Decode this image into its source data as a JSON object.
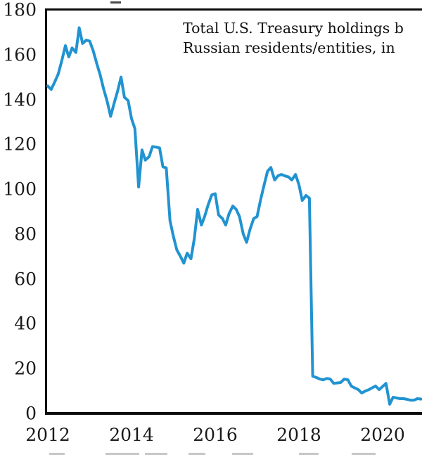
{
  "chart_data": {
    "type": "line",
    "title_lines": [
      "Total U.S. Treasury holdings b",
      "Russian residents/entities, in"
    ],
    "xlabel": "",
    "ylabel": "",
    "xlim": [
      2012.0,
      2020.94
    ],
    "ylim": [
      0,
      180
    ],
    "x_tick_years": [
      2012,
      2014,
      2016,
      2018,
      2020
    ],
    "y_tick_values": [
      180,
      160,
      140,
      120,
      100,
      80,
      60,
      40,
      20,
      0
    ],
    "grid": false,
    "legend_position": "none",
    "line_color": "#2193d1",
    "axis_color": "#0b0b0b",
    "series": [
      {
        "name": "treasury-holdings-by-russia",
        "points": [
          [
            2012.0,
            146
          ],
          [
            2012.08,
            144.5
          ],
          [
            2012.17,
            148
          ],
          [
            2012.25,
            151.5
          ],
          [
            2012.33,
            157
          ],
          [
            2012.42,
            164
          ],
          [
            2012.5,
            159
          ],
          [
            2012.58,
            163
          ],
          [
            2012.67,
            161
          ],
          [
            2012.75,
            172
          ],
          [
            2012.83,
            165
          ],
          [
            2012.92,
            166.5
          ],
          [
            2013.0,
            166
          ],
          [
            2013.08,
            162
          ],
          [
            2013.17,
            156
          ],
          [
            2013.25,
            151
          ],
          [
            2013.33,
            145
          ],
          [
            2013.42,
            139
          ],
          [
            2013.5,
            132.5
          ],
          [
            2013.58,
            138
          ],
          [
            2013.67,
            144
          ],
          [
            2013.75,
            150
          ],
          [
            2013.83,
            141
          ],
          [
            2013.92,
            139.5
          ],
          [
            2014.0,
            131.5
          ],
          [
            2014.08,
            127
          ],
          [
            2014.17,
            101
          ],
          [
            2014.25,
            117.5
          ],
          [
            2014.33,
            113
          ],
          [
            2014.42,
            114.5
          ],
          [
            2014.5,
            119
          ],
          [
            2014.58,
            118.8
          ],
          [
            2014.67,
            118.4
          ],
          [
            2014.75,
            110
          ],
          [
            2014.83,
            109.5
          ],
          [
            2014.92,
            86
          ],
          [
            2015.0,
            79
          ],
          [
            2015.08,
            73
          ],
          [
            2015.17,
            70
          ],
          [
            2015.25,
            67
          ],
          [
            2015.33,
            71.5
          ],
          [
            2015.42,
            69
          ],
          [
            2015.5,
            78
          ],
          [
            2015.58,
            91
          ],
          [
            2015.67,
            84
          ],
          [
            2015.75,
            88
          ],
          [
            2015.83,
            93
          ],
          [
            2015.92,
            97.5
          ],
          [
            2016.0,
            98
          ],
          [
            2016.08,
            88.5
          ],
          [
            2016.17,
            87
          ],
          [
            2016.25,
            84
          ],
          [
            2016.33,
            89
          ],
          [
            2016.42,
            92.5
          ],
          [
            2016.5,
            91
          ],
          [
            2016.58,
            87.8
          ],
          [
            2016.67,
            80
          ],
          [
            2016.75,
            76.3
          ],
          [
            2016.83,
            82
          ],
          [
            2016.92,
            86.9
          ],
          [
            2017.0,
            87.8
          ],
          [
            2017.08,
            95
          ],
          [
            2017.17,
            102
          ],
          [
            2017.25,
            108
          ],
          [
            2017.33,
            109.7
          ],
          [
            2017.42,
            104.1
          ],
          [
            2017.5,
            106
          ],
          [
            2017.58,
            106.6
          ],
          [
            2017.67,
            105.9
          ],
          [
            2017.75,
            105.5
          ],
          [
            2017.83,
            104.1
          ],
          [
            2017.92,
            106.6
          ],
          [
            2018.0,
            102
          ],
          [
            2018.08,
            95
          ],
          [
            2018.17,
            97.2
          ],
          [
            2018.25,
            96
          ],
          [
            2018.33,
            16.6
          ],
          [
            2018.42,
            16
          ],
          [
            2018.5,
            15.3
          ],
          [
            2018.58,
            15
          ],
          [
            2018.67,
            15.6
          ],
          [
            2018.75,
            15.3
          ],
          [
            2018.83,
            13.4
          ],
          [
            2018.92,
            13.6
          ],
          [
            2019.0,
            13.8
          ],
          [
            2019.08,
            15.3
          ],
          [
            2019.17,
            15
          ],
          [
            2019.25,
            12.2
          ],
          [
            2019.33,
            11.4
          ],
          [
            2019.42,
            10.6
          ],
          [
            2019.5,
            9.1
          ],
          [
            2019.58,
            9.9
          ],
          [
            2019.67,
            10.6
          ],
          [
            2019.75,
            11.4
          ],
          [
            2019.83,
            12.2
          ],
          [
            2019.92,
            10.6
          ],
          [
            2020.0,
            12
          ],
          [
            2020.08,
            13.4
          ],
          [
            2020.17,
            4.1
          ],
          [
            2020.25,
            7.2
          ],
          [
            2020.33,
            6.9
          ],
          [
            2020.42,
            6.6
          ],
          [
            2020.5,
            6.6
          ],
          [
            2020.58,
            6.3
          ],
          [
            2020.67,
            5.9
          ],
          [
            2020.75,
            5.9
          ],
          [
            2020.83,
            6.6
          ],
          [
            2020.92,
            6.4
          ]
        ]
      }
    ]
  }
}
